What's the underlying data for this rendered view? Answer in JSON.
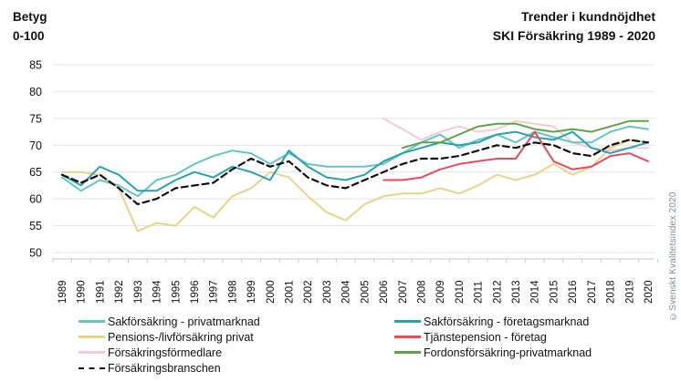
{
  "page": {
    "y_axis_title_line1": "Betyg",
    "y_axis_title_line2": "0-100",
    "title_line1": "Trender i kundnöjdhet",
    "title_line2": "SKI Försäkring 1989 - 2020",
    "watermark": "©Svenskt Kvalitetsindex 2020"
  },
  "chart_data": {
    "type": "line",
    "title": "Trender i kundnöjdhet SKI Försäkring 1989 - 2020",
    "ylabel": "Betyg 0-100",
    "ylim": [
      50,
      85
    ],
    "y_ticks": [
      85,
      80,
      75,
      70,
      65,
      60,
      55,
      50
    ],
    "grid": "horizontal",
    "legend_position": "bottom",
    "x": [
      1989,
      1990,
      1991,
      1992,
      1993,
      1994,
      1995,
      1996,
      1997,
      1998,
      1999,
      2000,
      2001,
      2002,
      2003,
      2004,
      2005,
      2006,
      2007,
      2008,
      2009,
      2010,
      2011,
      2012,
      2013,
      2014,
      2015,
      2016,
      2017,
      2018,
      2019,
      2020
    ],
    "series": [
      {
        "name": "Sakförsäkring - privatmarknad",
        "color": "#66c3c7",
        "dash": false,
        "values": [
          64,
          61.5,
          63.5,
          62.5,
          60.5,
          63.5,
          64.5,
          66.5,
          68,
          69,
          68.5,
          66.5,
          68.5,
          66.5,
          66,
          66,
          66,
          66.5,
          68.5,
          70.5,
          72,
          69.5,
          71,
          72,
          70.5,
          72.5,
          71.5,
          70.5,
          70.5,
          72.5,
          73.5,
          73
        ]
      },
      {
        "name": "Sakförsäkring - företagsmarknad",
        "color": "#27a2ae",
        "dash": false,
        "values": [
          64.5,
          62.5,
          66,
          64.5,
          61.5,
          61.5,
          63.5,
          65,
          64,
          66,
          65,
          63.5,
          69,
          66,
          64,
          63.5,
          64.5,
          67,
          68.5,
          69.5,
          70.5,
          70,
          70.5,
          72,
          72.5,
          71.5,
          71,
          72.5,
          69.5,
          68.5,
          69.5,
          70.5
        ]
      },
      {
        "name": "Pensions-/livförsäkring privat",
        "color": "#e9d28a",
        "dash": false,
        "values": [
          65,
          65,
          64.5,
          62,
          54,
          55.5,
          55,
          58.5,
          56.5,
          60.5,
          62,
          65,
          64,
          60.5,
          57.5,
          56,
          59,
          60.5,
          61,
          61,
          62,
          61,
          62.5,
          64.5,
          63.5,
          64.5,
          66.5,
          64.5,
          66,
          69.5,
          71,
          70.5
        ]
      },
      {
        "name": "Tjänstepension - företag",
        "color": "#e84c5c",
        "dash": false,
        "values": [
          null,
          null,
          null,
          null,
          null,
          null,
          null,
          null,
          null,
          null,
          null,
          null,
          null,
          null,
          null,
          null,
          null,
          63.5,
          63.5,
          64,
          65.5,
          66.5,
          67,
          67.5,
          67.5,
          72.5,
          67,
          65.5,
          66,
          68,
          68.5,
          67
        ]
      },
      {
        "name": "Försäkringsförmedlare",
        "color": "#f7c9d1",
        "dash": false,
        "values": [
          null,
          null,
          null,
          null,
          null,
          null,
          null,
          null,
          null,
          null,
          null,
          null,
          null,
          null,
          null,
          null,
          null,
          75,
          73,
          71,
          72.5,
          73.5,
          72.5,
          73,
          74.5,
          74,
          73.5,
          70.5,
          69.5,
          69,
          69.5,
          69.5
        ]
      },
      {
        "name": "Fordonsförsäkring-privatmarknad",
        "color": "#5ea348",
        "dash": false,
        "values": [
          null,
          null,
          null,
          null,
          null,
          null,
          null,
          null,
          null,
          null,
          null,
          null,
          null,
          null,
          null,
          null,
          null,
          null,
          69.5,
          70.5,
          70.5,
          72,
          73.5,
          74,
          74,
          73,
          72.5,
          73,
          72.5,
          73.5,
          74.5,
          74.5
        ]
      },
      {
        "name": "Försäkringsbranschen",
        "color": "#111111",
        "dash": true,
        "values": [
          64.5,
          63,
          64.5,
          62,
          59,
          60,
          62,
          62.5,
          63,
          65.5,
          67.5,
          66,
          67,
          64,
          62.5,
          62,
          63.5,
          65,
          66.5,
          67.5,
          67.5,
          68,
          69,
          70,
          69.5,
          70.5,
          70,
          68.5,
          68,
          70,
          71,
          70.5
        ]
      }
    ]
  }
}
